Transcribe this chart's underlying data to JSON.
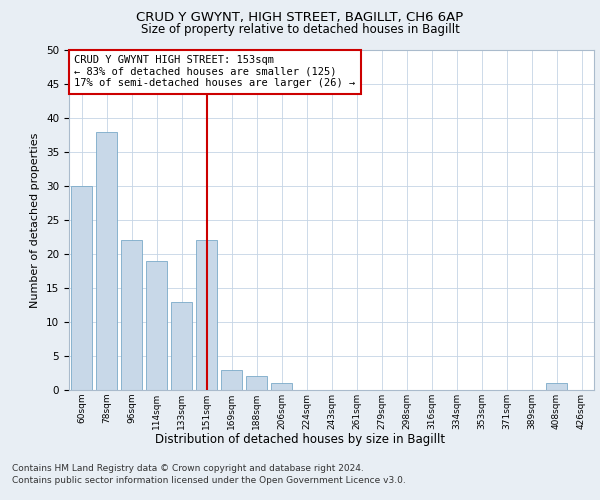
{
  "title1": "CRUD Y GWYNT, HIGH STREET, BAGILLT, CH6 6AP",
  "title2": "Size of property relative to detached houses in Bagillt",
  "xlabel": "Distribution of detached houses by size in Bagillt",
  "ylabel": "Number of detached properties",
  "categories": [
    "60sqm",
    "78sqm",
    "96sqm",
    "114sqm",
    "133sqm",
    "151sqm",
    "169sqm",
    "188sqm",
    "206sqm",
    "224sqm",
    "243sqm",
    "261sqm",
    "279sqm",
    "298sqm",
    "316sqm",
    "334sqm",
    "353sqm",
    "371sqm",
    "389sqm",
    "408sqm",
    "426sqm"
  ],
  "values": [
    30,
    38,
    22,
    19,
    13,
    22,
    3,
    2,
    1,
    0,
    0,
    0,
    0,
    0,
    0,
    0,
    0,
    0,
    0,
    1,
    0
  ],
  "bar_color": "#c8d8e8",
  "bar_edge_color": "#7aaac8",
  "highlight_index": 5,
  "highlight_color": "#cc0000",
  "annotation_title": "CRUD Y GWYNT HIGH STREET: 153sqm",
  "annotation_line1": "← 83% of detached houses are smaller (125)",
  "annotation_line2": "17% of semi-detached houses are larger (26) →",
  "ylim": [
    0,
    50
  ],
  "yticks": [
    0,
    5,
    10,
    15,
    20,
    25,
    30,
    35,
    40,
    45,
    50
  ],
  "footnote1": "Contains HM Land Registry data © Crown copyright and database right 2024.",
  "footnote2": "Contains public sector information licensed under the Open Government Licence v3.0.",
  "background_color": "#e8eef4",
  "plot_background": "#ffffff",
  "grid_color": "#c5d5e5"
}
